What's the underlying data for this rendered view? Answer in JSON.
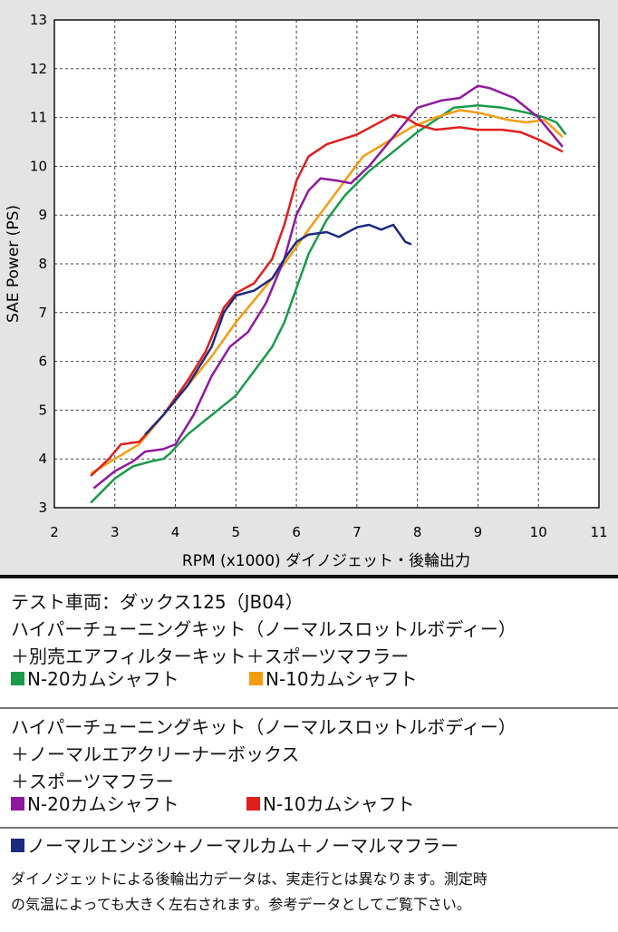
{
  "chart_data": {
    "type": "line",
    "xlabel": "RPM (x1000) ダイノジェット・後輪出力",
    "ylabel": "SAE Power (PS)",
    "xlim": [
      2,
      11
    ],
    "ylim": [
      3,
      13
    ],
    "xticks": [
      2,
      3,
      4,
      5,
      6,
      7,
      8,
      9,
      10,
      11
    ],
    "yticks": [
      3,
      4,
      5,
      6,
      7,
      8,
      9,
      10,
      11,
      12,
      13
    ],
    "grid": true,
    "series": [
      {
        "name": "N-20カムシャフト",
        "color": "#1a9a4a",
        "x": [
          2.6,
          3.0,
          3.3,
          3.6,
          3.8,
          3.9,
          4.2,
          4.6,
          5.0,
          5.3,
          5.6,
          5.8,
          6.0,
          6.2,
          6.5,
          6.8,
          7.2,
          7.6,
          8.0,
          8.3,
          8.6,
          9.0,
          9.4,
          9.8,
          10.1,
          10.3,
          10.45
        ],
        "values": [
          3.1,
          3.6,
          3.85,
          3.95,
          4.0,
          4.1,
          4.5,
          4.9,
          5.3,
          5.8,
          6.3,
          6.8,
          7.5,
          8.2,
          8.9,
          9.4,
          9.9,
          10.3,
          10.7,
          10.95,
          11.2,
          11.25,
          11.2,
          11.1,
          11.0,
          10.9,
          10.65
        ]
      },
      {
        "name": "N-10カムシャフト",
        "color": "#f39c12",
        "x": [
          2.6,
          3.0,
          3.4,
          3.8,
          4.2,
          4.6,
          5.0,
          5.4,
          5.8,
          6.2,
          6.5,
          6.8,
          7.1,
          7.5,
          7.9,
          8.3,
          8.7,
          9.0,
          9.5,
          9.8,
          10.1,
          10.4
        ],
        "values": [
          3.7,
          4.0,
          4.3,
          4.9,
          5.5,
          6.1,
          6.8,
          7.4,
          8.0,
          8.7,
          9.2,
          9.7,
          10.2,
          10.5,
          10.8,
          11.0,
          11.15,
          11.1,
          10.95,
          10.9,
          10.95,
          10.6
        ]
      },
      {
        "name": "N-20カムシャフト",
        "color": "#8e1a9e",
        "x": [
          2.65,
          3.0,
          3.3,
          3.5,
          3.8,
          4.0,
          4.3,
          4.6,
          4.9,
          5.2,
          5.5,
          5.8,
          6.0,
          6.2,
          6.4,
          6.7,
          6.9,
          7.2,
          7.6,
          8.0,
          8.4,
          8.7,
          9.0,
          9.2,
          9.6,
          10.0,
          10.4
        ],
        "values": [
          3.4,
          3.75,
          3.95,
          4.15,
          4.2,
          4.3,
          4.9,
          5.7,
          6.3,
          6.6,
          7.2,
          8.1,
          9.0,
          9.5,
          9.75,
          9.7,
          9.65,
          10.0,
          10.6,
          11.2,
          11.35,
          11.4,
          11.65,
          11.6,
          11.4,
          11.0,
          10.4
        ]
      },
      {
        "name": "N-10カムシャフト",
        "color": "#e01e1e",
        "x": [
          2.6,
          2.9,
          3.1,
          3.4,
          3.8,
          4.2,
          4.5,
          4.8,
          5.0,
          5.3,
          5.6,
          5.8,
          6.0,
          6.2,
          6.5,
          7.0,
          7.3,
          7.6,
          7.8,
          8.0,
          8.3,
          8.7,
          9.0,
          9.4,
          9.7,
          10.0,
          10.4
        ],
        "values": [
          3.65,
          4.0,
          4.3,
          4.35,
          4.9,
          5.6,
          6.2,
          7.1,
          7.4,
          7.6,
          8.1,
          8.8,
          9.7,
          10.2,
          10.45,
          10.65,
          10.85,
          11.05,
          11.0,
          10.85,
          10.75,
          10.8,
          10.75,
          10.75,
          10.7,
          10.55,
          10.3
        ]
      },
      {
        "name": "ノーマルエンジン+ノーマルカム＋ノーマルマフラー",
        "color": "#1c2a80",
        "x": [
          3.5,
          3.8,
          4.2,
          4.6,
          4.8,
          5.0,
          5.3,
          5.6,
          5.8,
          6.0,
          6.2,
          6.5,
          6.7,
          7.0,
          7.2,
          7.4,
          7.6,
          7.8,
          7.9
        ],
        "values": [
          4.5,
          4.9,
          5.5,
          6.3,
          7.0,
          7.35,
          7.45,
          7.7,
          8.1,
          8.45,
          8.6,
          8.65,
          8.55,
          8.75,
          8.8,
          8.7,
          8.8,
          8.45,
          8.4
        ]
      }
    ]
  },
  "caption": {
    "vehicle": "テスト車両：ダックス125（JB04）",
    "group1": [
      "ハイパーチューニングキット（ノーマルスロットルボディー）",
      "＋別売エアフィルターキット＋スポーツマフラー"
    ],
    "group2": [
      "ハイパーチューニングキット（ノーマルスロットルボディー）",
      "＋ノーマルエアクリーナーボックス",
      "＋スポーツマフラー"
    ],
    "footnote": [
      "ダイノジェットによる後輪出力データは、実走行とは異なります。測定時",
      "の気温によっても大きく左右されます。参考データとしてご覧下さい。"
    ]
  }
}
